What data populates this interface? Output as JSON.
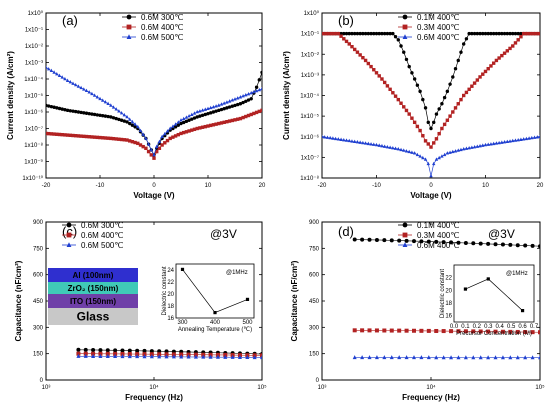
{
  "chart_data": [
    {
      "panel": "(a)",
      "type": "line",
      "xlabel": "Voltage (V)",
      "ylabel": "Current density (A/cm²)",
      "xlim": [
        -20,
        20
      ],
      "ylim_exp": [
        -10,
        0
      ],
      "yscale": "log",
      "xticks": [
        "-20",
        "-10",
        "0",
        "10",
        "20"
      ],
      "yticks": [
        "1x10⁻¹⁰",
        "1x10⁻⁹",
        "1x10⁻⁸",
        "1x10⁻⁷",
        "1x10⁻⁶",
        "1x10⁻⁵",
        "1x10⁻⁴",
        "1x10⁻³",
        "1x10⁻²",
        "1x10⁻¹",
        "1x10⁰"
      ],
      "legend_position": "top-right",
      "series": [
        {
          "name": "0.6M 300℃",
          "color": "#000000",
          "marker": "circle",
          "x": [
            -20,
            -16,
            -12,
            -8,
            -5,
            -3,
            -1.5,
            -0.5,
            0,
            0.5,
            1.5,
            3,
            5,
            8,
            12,
            16,
            18,
            19,
            20
          ],
          "y": [
            -5.6,
            -5.9,
            -6.1,
            -6.3,
            -6.6,
            -7.0,
            -7.6,
            -8.3,
            -8.6,
            -8.2,
            -7.6,
            -7.1,
            -6.7,
            -6.3,
            -5.9,
            -5.5,
            -5.2,
            -4.5,
            -3.6
          ]
        },
        {
          "name": "0.6M 400℃",
          "color": "#b22222",
          "marker": "square",
          "x": [
            -20,
            -16,
            -12,
            -8,
            -5,
            -3,
            -1.5,
            -0.5,
            0,
            0.5,
            1.5,
            3,
            5,
            8,
            12,
            16,
            20
          ],
          "y": [
            -7.3,
            -7.4,
            -7.5,
            -7.6,
            -7.7,
            -7.9,
            -8.2,
            -8.6,
            -8.8,
            -8.4,
            -8.0,
            -7.6,
            -7.3,
            -7.0,
            -6.7,
            -6.4,
            -5.9
          ]
        },
        {
          "name": "0.6M 500℃",
          "color": "#1f3fd0",
          "marker": "triangle",
          "x": [
            -20,
            -16,
            -12,
            -8,
            -5,
            -3,
            -1.5,
            -0.5,
            0,
            0.5,
            1.5,
            3,
            5,
            8,
            12,
            16,
            20
          ],
          "y": [
            -3.3,
            -4.1,
            -4.8,
            -5.6,
            -6.3,
            -6.9,
            -7.6,
            -8.3,
            -8.6,
            -8.1,
            -7.5,
            -7.0,
            -6.5,
            -6.0,
            -5.6,
            -5.1,
            -4.6
          ]
        }
      ]
    },
    {
      "panel": "(b)",
      "type": "line",
      "xlabel": "Voltage (V)",
      "ylabel": "Current density (A/cm²)",
      "xlim": [
        -20,
        20
      ],
      "ylim_exp": [
        -8,
        0
      ],
      "yscale": "log",
      "xticks": [
        "-20",
        "-10",
        "0",
        "10",
        "20"
      ],
      "yticks": [
        "1x10⁻⁸",
        "1x10⁻⁷",
        "1x10⁻⁶",
        "1x10⁻⁵",
        "1x10⁻⁴",
        "1x10⁻³",
        "1x10⁻²",
        "1x10⁻¹",
        "1x10⁰"
      ],
      "legend_position": "top-right",
      "series": [
        {
          "name": "0.1M 400℃",
          "color": "#000000",
          "marker": "circle",
          "x": [
            -20,
            -10,
            -7,
            -6,
            -5,
            -4,
            -3,
            -2,
            -1,
            -0.5,
            0,
            0.5,
            1,
            2,
            3,
            4,
            5,
            6,
            7,
            8,
            20
          ],
          "y": [
            -1,
            -1,
            -1,
            -1.3,
            -1.9,
            -2.6,
            -3.2,
            -3.8,
            -4.6,
            -5.3,
            -5.6,
            -5.3,
            -4.9,
            -4.4,
            -3.8,
            -3.1,
            -2.3,
            -1.5,
            -1,
            -1,
            -1
          ]
        },
        {
          "name": "0.3M 400℃",
          "color": "#b22222",
          "marker": "square",
          "x": [
            -17,
            -15,
            -12,
            -9,
            -6,
            -4,
            -2,
            -1,
            0,
            1,
            2,
            4,
            6,
            9,
            12,
            15,
            17
          ],
          "y": [
            -1,
            -1.5,
            -2.3,
            -3.2,
            -4.2,
            -4.9,
            -5.7,
            -6.2,
            -6.5,
            -6.1,
            -5.6,
            -4.8,
            -4.0,
            -3.1,
            -2.3,
            -1.6,
            -1
          ]
        },
        {
          "name": "0.6M 400℃",
          "color": "#1f3fd0",
          "marker": "triangle",
          "x": [
            -20,
            -15,
            -10,
            -6,
            -3,
            -1,
            -0.3,
            0,
            0.3,
            1,
            3,
            6,
            10,
            15,
            20
          ],
          "y": [
            -6.0,
            -6.2,
            -6.4,
            -6.6,
            -6.8,
            -7.1,
            -7.4,
            -7.9,
            -7.4,
            -7.1,
            -6.8,
            -6.6,
            -6.4,
            -6.2,
            -6.0
          ]
        }
      ]
    },
    {
      "panel": "(c)",
      "type": "scatter",
      "xlabel": "Frequency (Hz)",
      "ylabel": "Capacitance (nF/cm²)",
      "xlim_exp": [
        3,
        5
      ],
      "xscale": "log",
      "ylim": [
        0,
        900
      ],
      "xticks": [
        "10³",
        "10⁴",
        "10⁵"
      ],
      "yticks": [
        "0",
        "150",
        "300",
        "450",
        "600",
        "750",
        "900"
      ],
      "annotation": "@3V",
      "legend_position": "top-left",
      "series": [
        {
          "name": "0.6M 300℃",
          "color": "#000000",
          "marker": "circle",
          "start": [
            3.3,
            172
          ],
          "end": [
            5.0,
            148
          ]
        },
        {
          "name": "0.6M 400℃",
          "color": "#b22222",
          "marker": "square",
          "start": [
            3.3,
            150
          ],
          "end": [
            5.0,
            140
          ]
        },
        {
          "name": "0.6M 500℃",
          "color": "#1f3fd0",
          "marker": "triangle",
          "start": [
            3.3,
            135
          ],
          "end": [
            5.0,
            128
          ]
        }
      ],
      "inset": {
        "type": "line",
        "xlabel": "Annealing Temperature (℃)",
        "ylabel": "Dielectric constant",
        "annotation": "@1MHz",
        "xlim": [
          280,
          520
        ],
        "ylim": [
          16,
          25
        ],
        "xticks": [
          "300",
          "400",
          "500"
        ],
        "yticks": [
          "16",
          "18",
          "20",
          "22",
          "24"
        ],
        "x": [
          300,
          400,
          500
        ],
        "y": [
          24.1,
          16.9,
          19.1
        ]
      },
      "stack": [
        "Al (100nm)",
        "ZrO₂ (150nm)",
        "ITO (150nm)",
        "Glass"
      ]
    },
    {
      "panel": "(d)",
      "type": "scatter",
      "xlabel": "Frequency (Hz)",
      "ylabel": "Capacitance (nF/cm²)",
      "xlim_exp": [
        3,
        5
      ],
      "xscale": "log",
      "ylim": [
        0,
        900
      ],
      "xticks": [
        "10³",
        "10⁴",
        "10⁵"
      ],
      "yticks": [
        "0",
        "150",
        "300",
        "450",
        "600",
        "750",
        "900"
      ],
      "annotation": "@3V",
      "legend_position": "top-left",
      "series": [
        {
          "name": "0.1M 400℃",
          "color": "#000000",
          "marker": "circle",
          "start": [
            3.3,
            800
          ],
          "end": [
            5.0,
            762
          ]
        },
        {
          "name": "0.3M 400℃",
          "color": "#b22222",
          "marker": "square",
          "start": [
            3.3,
            283
          ],
          "end": [
            5.0,
            272
          ]
        },
        {
          "name": "0.6M 400℃",
          "color": "#1f3fd0",
          "marker": "triangle",
          "start": [
            3.3,
            128
          ],
          "end": [
            5.0,
            127
          ]
        }
      ],
      "inset": {
        "type": "line",
        "xlabel": "Precursor Concentration (M)",
        "ylabel": "Dielectric constant",
        "annotation": "@1MHz",
        "xlim": [
          0,
          0.7
        ],
        "ylim": [
          15,
          24
        ],
        "xticks": [
          "0.0",
          "0.1",
          "0.2",
          "0.3",
          "0.4",
          "0.5",
          "0.6",
          "0.7"
        ],
        "yticks": [
          "16",
          "18",
          "20",
          "22"
        ],
        "x": [
          0.1,
          0.3,
          0.6
        ],
        "y": [
          20.2,
          21.8,
          16.8
        ]
      }
    }
  ]
}
